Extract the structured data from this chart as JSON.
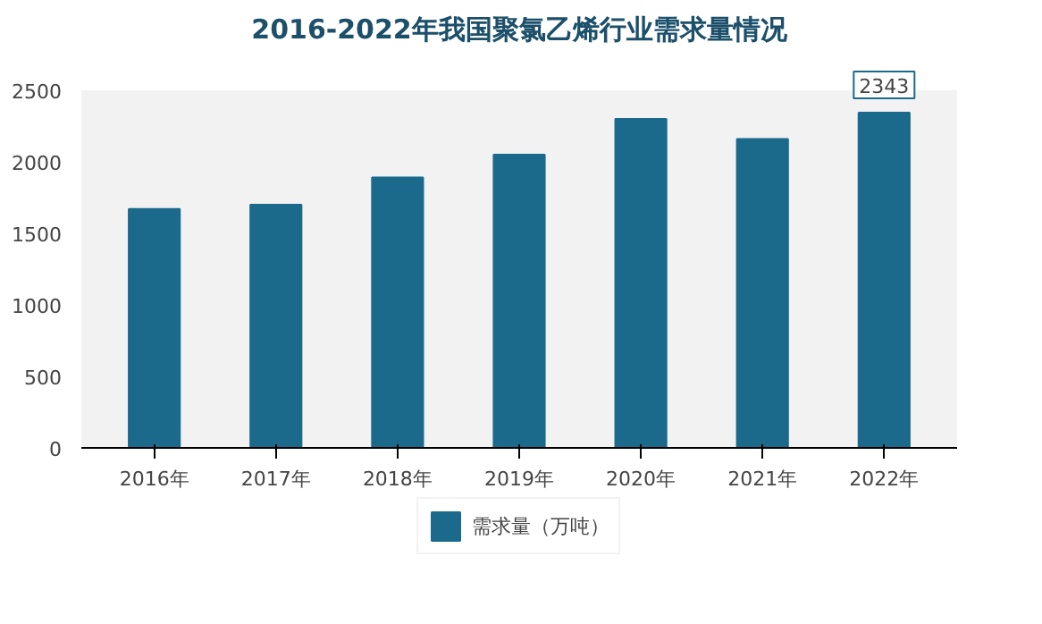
{
  "chart_data": {
    "type": "bar",
    "title": "2016-2022年我国聚氯乙烯行业需求量情况",
    "categories": [
      "2016年",
      "2017年",
      "2018年",
      "2019年",
      "2020年",
      "2021年",
      "2022年"
    ],
    "series": [
      {
        "name": "需求量（万吨）",
        "color": "#1b6a8c",
        "values": [
          1670,
          1700,
          1890,
          2050,
          2300,
          2160,
          2343
        ],
        "value_labels": [
          null,
          null,
          null,
          null,
          null,
          null,
          "2343"
        ]
      }
    ],
    "ylim": [
      0,
      2500
    ],
    "yticks": [
      0,
      500,
      1000,
      1500,
      2000,
      2500
    ],
    "grid": false,
    "legend": "bottom"
  }
}
